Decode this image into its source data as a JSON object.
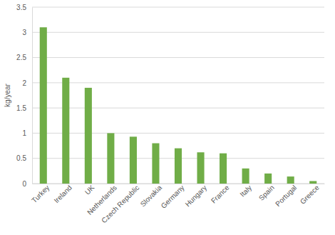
{
  "chart_data": {
    "type": "bar",
    "y_label": "kg/year",
    "categories": [
      "Turkey",
      "Ireland",
      "UK",
      "Netherlands",
      "Czech Republic",
      "Slovakia",
      "Germany",
      "Hungary",
      "France",
      "Italy",
      "Spain",
      "Portugal",
      "Greece"
    ],
    "values": [
      3.1,
      2.1,
      1.9,
      1.0,
      0.93,
      0.8,
      0.7,
      0.62,
      0.6,
      0.3,
      0.2,
      0.14,
      0.05
    ],
    "color": "#70ad47",
    "ylim": [
      0,
      3.5
    ],
    "yticks": [
      0,
      0.5,
      1,
      1.5,
      2,
      2.5,
      3,
      3.5
    ],
    "grid": true
  }
}
